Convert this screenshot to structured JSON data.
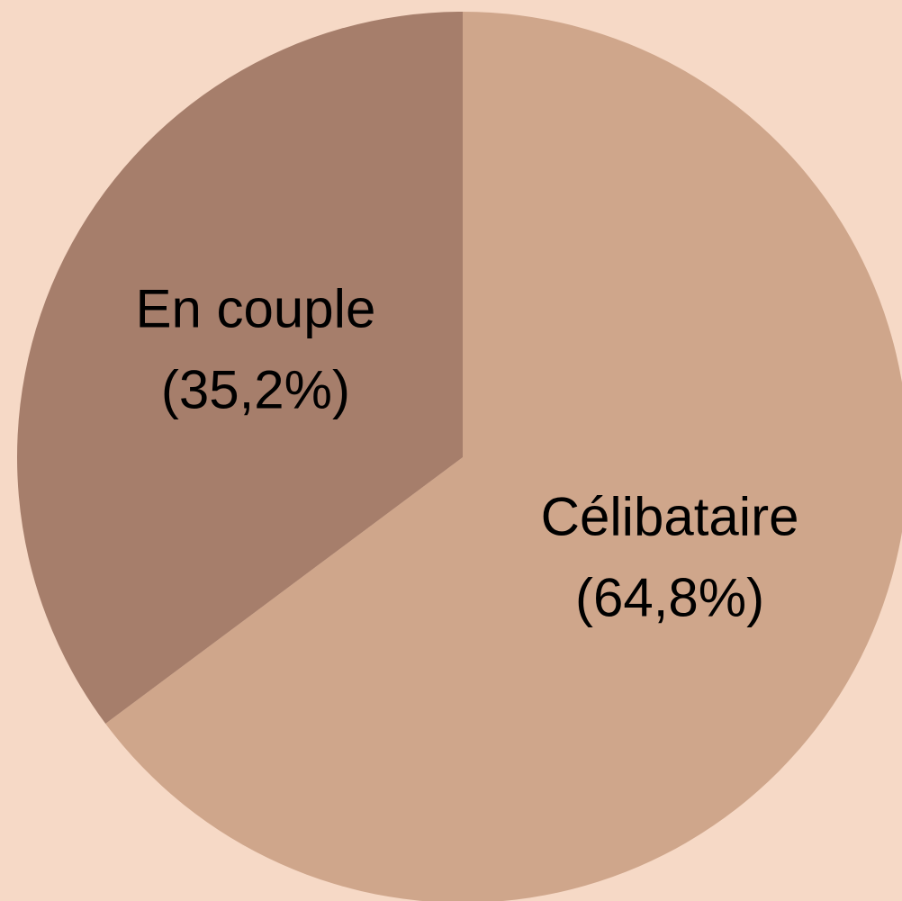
{
  "chart_data": {
    "type": "pie",
    "categories": [
      "Célibataire",
      "En couple"
    ],
    "values": [
      64.8,
      35.2
    ],
    "value_labels": [
      "(64,8%)",
      "(35,2%)"
    ],
    "colors": [
      "#cfa68b",
      "#a67e6b"
    ]
  }
}
